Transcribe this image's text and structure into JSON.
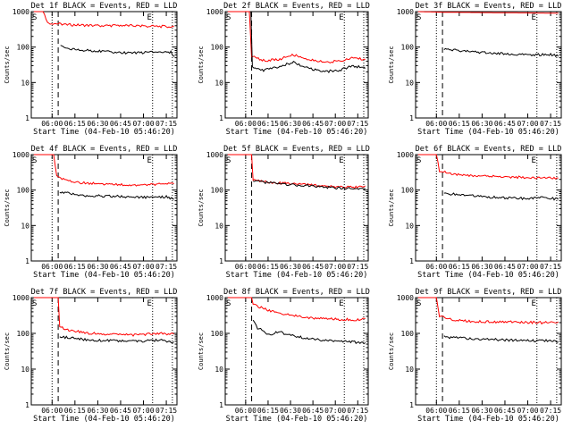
{
  "chart_data": [
    {
      "type": "line",
      "title": "Det 1f BLACK = Events, RED = LLD",
      "xlabel": "Start Time (04-Feb-10 05:46:20)",
      "ylabel": "Counts/sec",
      "yscale": "log",
      "ylim": [
        1,
        1000
      ],
      "xlim": [
        "05:46:20",
        "07:22:00"
      ],
      "x_ticks": [
        "06:00",
        "06:15",
        "06:30",
        "06:45",
        "07:00",
        "07:15"
      ],
      "y_ticks": [
        "1",
        "10",
        "100",
        "1000"
      ],
      "markers": [
        "S",
        "E"
      ],
      "series": [
        {
          "name": "",
          "color": "#ff0000",
          "points": [
            [
              "05:48:00",
              1000
            ],
            [
              "05:54:00",
              1000
            ],
            [
              "05:57:00",
              480
            ],
            [
              "06:10:00",
              430
            ],
            [
              "06:30:00",
              400
            ],
            [
              "06:45:00",
              410
            ],
            [
              "07:00:00",
              390
            ],
            [
              "07:15:00",
              380
            ],
            [
              "07:20:00",
              370
            ]
          ]
        },
        {
          "name": "",
          "color": "#000000",
          "points": [
            [
              "06:05:30",
              110
            ],
            [
              "06:10:00",
              95
            ],
            [
              "06:18:00",
              82
            ],
            [
              "06:26:00",
              80
            ],
            [
              "06:38:00",
              72
            ],
            [
              "06:50:00",
              68
            ],
            [
              "07:02:00",
              70
            ],
            [
              "07:12:00",
              75
            ],
            [
              "07:18:00",
              72
            ],
            [
              "07:20:30",
              55
            ]
          ]
        }
      ]
    },
    {
      "type": "line",
      "title": "Det 2f BLACK = Events, RED = LLD",
      "xlabel": "Start Time (04-Feb-10 05:46:20)",
      "ylabel": "Counts/sec",
      "yscale": "log",
      "ylim": [
        1,
        1000
      ],
      "xlim": [
        "05:46:20",
        "07:22:00"
      ],
      "x_ticks": [
        "06:00",
        "06:15",
        "06:30",
        "06:45",
        "07:00",
        "07:15"
      ],
      "y_ticks": [
        "1",
        "10",
        "100",
        "1000"
      ],
      "markers": [
        "S",
        "E"
      ],
      "series": [
        {
          "name": "",
          "color": "#ff0000",
          "points": [
            [
              "05:48:00",
              1000
            ],
            [
              "06:02:30",
              1000
            ],
            [
              "06:04:00",
              55
            ],
            [
              "06:12:00",
              42
            ],
            [
              "06:22:00",
              45
            ],
            [
              "06:32:00",
              60
            ],
            [
              "06:42:00",
              45
            ],
            [
              "06:52:00",
              38
            ],
            [
              "07:02:00",
              40
            ],
            [
              "07:12:00",
              50
            ],
            [
              "07:20:00",
              45
            ]
          ]
        },
        {
          "name": "",
          "color": "#000000",
          "points": [
            [
              "06:03:30",
              1000
            ],
            [
              "06:04:30",
              28
            ],
            [
              "06:12:00",
              22
            ],
            [
              "06:22:00",
              28
            ],
            [
              "06:32:00",
              38
            ],
            [
              "06:42:00",
              25
            ],
            [
              "06:52:00",
              20
            ],
            [
              "07:02:00",
              22
            ],
            [
              "07:12:00",
              30
            ],
            [
              "07:20:00",
              25
            ]
          ]
        }
      ]
    },
    {
      "type": "line",
      "title": "Det 3f BLACK = Events, RED = LLD",
      "xlabel": "Start Time (04-Feb-10 05:46:20)",
      "ylabel": "Counts/sec",
      "yscale": "log",
      "ylim": [
        1,
        1000
      ],
      "xlim": [
        "05:46:20",
        "07:22:00"
      ],
      "x_ticks": [
        "06:00",
        "06:15",
        "06:30",
        "06:45",
        "07:00",
        "07:15"
      ],
      "y_ticks": [
        "1",
        "10",
        "100",
        "1000"
      ],
      "markers": [
        "S",
        "E"
      ],
      "series": [
        {
          "name": "",
          "color": "#ff0000",
          "points": [
            [
              "05:48:00",
              1000
            ],
            [
              "06:05:00",
              960
            ],
            [
              "06:30:00",
              940
            ],
            [
              "07:00:00",
              920
            ],
            [
              "07:20:00",
              900
            ]
          ]
        },
        {
          "name": "",
          "color": "#000000",
          "points": [
            [
              "06:05:00",
              85
            ],
            [
              "06:15:00",
              80
            ],
            [
              "06:30:00",
              70
            ],
            [
              "06:45:00",
              65
            ],
            [
              "07:00:00",
              60
            ],
            [
              "07:15:00",
              62
            ],
            [
              "07:20:00",
              55
            ]
          ]
        }
      ]
    },
    {
      "type": "line",
      "title": "Det 4f BLACK = Events, RED = LLD",
      "xlabel": "Start Time (04-Feb-10 05:46:20)",
      "ylabel": "Counts/sec",
      "yscale": "log",
      "ylim": [
        1,
        1000
      ],
      "xlim": [
        "05:46:20",
        "07:22:00"
      ],
      "x_ticks": [
        "06:00",
        "06:15",
        "06:30",
        "06:45",
        "07:00",
        "07:15"
      ],
      "y_ticks": [
        "1",
        "10",
        "100",
        "1000"
      ],
      "markers": [
        "S",
        "E"
      ],
      "series": [
        {
          "name": "",
          "color": "#ff0000",
          "points": [
            [
              "05:48:00",
              1000
            ],
            [
              "06:01:00",
              1000
            ],
            [
              "06:03:00",
              240
            ],
            [
              "06:10:00",
              180
            ],
            [
              "06:20:00",
              160
            ],
            [
              "06:35:00",
              150
            ],
            [
              "06:50:00",
              140
            ],
            [
              "07:05:00",
              145
            ],
            [
              "07:20:00",
              150
            ]
          ]
        },
        {
          "name": "",
          "color": "#000000",
          "points": [
            [
              "06:05:00",
              90
            ],
            [
              "06:12:00",
              80
            ],
            [
              "06:22:00",
              70
            ],
            [
              "06:35:00",
              68
            ],
            [
              "06:50:00",
              65
            ],
            [
              "07:05:00",
              63
            ],
            [
              "07:15:00",
              65
            ],
            [
              "07:20:00",
              55
            ]
          ]
        }
      ]
    },
    {
      "type": "line",
      "title": "Det 5f BLACK = Events, RED = LLD",
      "xlabel": "Start Time (04-Feb-10 05:46:20)",
      "ylabel": "Counts/sec",
      "yscale": "log",
      "ylim": [
        1,
        1000
      ],
      "xlim": [
        "05:46:20",
        "07:22:00"
      ],
      "x_ticks": [
        "06:00",
        "06:15",
        "06:30",
        "06:45",
        "07:00",
        "07:15"
      ],
      "y_ticks": [
        "1",
        "10",
        "100",
        "1000"
      ],
      "markers": [
        "S",
        "E"
      ],
      "series": [
        {
          "name": "",
          "color": "#ff0000",
          "points": [
            [
              "05:48:00",
              1000
            ],
            [
              "06:04:00",
              1000
            ],
            [
              "06:05:00",
              200
            ],
            [
              "06:15:00",
              170
            ],
            [
              "06:30:00",
              150
            ],
            [
              "06:45:00",
              140
            ],
            [
              "07:00:00",
              125
            ],
            [
              "07:12:00",
              120
            ],
            [
              "07:20:00",
              130
            ]
          ]
        },
        {
          "name": "",
          "color": "#000000",
          "points": [
            [
              "06:05:00",
              185
            ],
            [
              "06:15:00",
              160
            ],
            [
              "06:30:00",
              140
            ],
            [
              "06:45:00",
              132
            ],
            [
              "07:00:00",
              115
            ],
            [
              "07:12:00",
              110
            ],
            [
              "07:20:00",
              112
            ]
          ]
        }
      ]
    },
    {
      "type": "line",
      "title": "Det 6f BLACK = Events, RED = LLD",
      "xlabel": "Start Time (04-Feb-10 05:46:20)",
      "ylabel": "Counts/sec",
      "yscale": "log",
      "ylim": [
        1,
        1000
      ],
      "xlim": [
        "05:46:20",
        "07:22:00"
      ],
      "x_ticks": [
        "06:00",
        "06:15",
        "06:30",
        "06:45",
        "07:00",
        "07:15"
      ],
      "y_ticks": [
        "1",
        "10",
        "100",
        "1000"
      ],
      "markers": [
        "S",
        "E"
      ],
      "series": [
        {
          "name": "",
          "color": "#ff0000",
          "points": [
            [
              "05:48:00",
              1000
            ],
            [
              "06:00:00",
              1000
            ],
            [
              "06:02:00",
              350
            ],
            [
              "06:10:00",
              280
            ],
            [
              "06:25:00",
              250
            ],
            [
              "06:40:00",
              240
            ],
            [
              "06:55:00",
              230
            ],
            [
              "07:10:00",
              215
            ],
            [
              "07:20:00",
              220
            ]
          ]
        },
        {
          "name": "",
          "color": "#000000",
          "points": [
            [
              "06:05:00",
              80
            ],
            [
              "06:15:00",
              75
            ],
            [
              "06:30:00",
              65
            ],
            [
              "06:45:00",
              60
            ],
            [
              "07:00:00",
              58
            ],
            [
              "07:12:00",
              62
            ],
            [
              "07:20:00",
              55
            ]
          ]
        }
      ]
    },
    {
      "type": "line",
      "title": "Det 7f BLACK = Events, RED = LLD",
      "xlabel": "Start Time (04-Feb-10 05:46:20)",
      "ylabel": "Counts/sec",
      "yscale": "log",
      "ylim": [
        1,
        1000
      ],
      "xlim": [
        "05:46:20",
        "07:22:00"
      ],
      "x_ticks": [
        "06:00",
        "06:15",
        "06:30",
        "06:45",
        "07:00",
        "07:15"
      ],
      "y_ticks": [
        "1",
        "10",
        "100",
        "1000"
      ],
      "markers": [
        "S",
        "E"
      ],
      "series": [
        {
          "name": "",
          "color": "#ff0000",
          "points": [
            [
              "05:48:00",
              1000
            ],
            [
              "06:04:00",
              1000
            ],
            [
              "06:05:00",
              150
            ],
            [
              "06:12:00",
              120
            ],
            [
              "06:25:00",
              100
            ],
            [
              "06:40:00",
              95
            ],
            [
              "06:55:00",
              90
            ],
            [
              "07:10:00",
              100
            ],
            [
              "07:20:00",
              95
            ]
          ]
        },
        {
          "name": "",
          "color": "#000000",
          "points": [
            [
              "06:05:00",
              80
            ],
            [
              "06:12:00",
              75
            ],
            [
              "06:25:00",
              65
            ],
            [
              "06:40:00",
              62
            ],
            [
              "06:55:00",
              60
            ],
            [
              "07:10:00",
              65
            ],
            [
              "07:20:00",
              58
            ]
          ]
        }
      ]
    },
    {
      "type": "line",
      "title": "Det 8f BLACK = Events, RED = LLD",
      "xlabel": "Start Time (04-Feb-10 05:46:20)",
      "ylabel": "Counts/sec",
      "yscale": "log",
      "ylim": [
        1,
        1000
      ],
      "xlim": [
        "05:46:20",
        "07:22:00"
      ],
      "x_ticks": [
        "06:00",
        "06:15",
        "06:30",
        "06:45",
        "07:00",
        "07:15"
      ],
      "y_ticks": [
        "1",
        "10",
        "100",
        "1000"
      ],
      "markers": [
        "S",
        "E"
      ],
      "series": [
        {
          "name": "",
          "color": "#ff0000",
          "points": [
            [
              "05:48:00",
              1000
            ],
            [
              "06:04:00",
              1000
            ],
            [
              "06:05:00",
              650
            ],
            [
              "06:15:00",
              450
            ],
            [
              "06:30:00",
              320
            ],
            [
              "06:45:00",
              270
            ],
            [
              "07:00:00",
              250
            ],
            [
              "07:15:00",
              240
            ],
            [
              "07:20:00",
              260
            ]
          ]
        },
        {
          "name": "",
          "color": "#000000",
          "points": [
            [
              "06:05:00",
              220
            ],
            [
              "06:08:00",
              140
            ],
            [
              "06:12:00",
              120
            ],
            [
              "06:15:00",
              90
            ],
            [
              "06:22:00",
              110
            ],
            [
              "06:35:00",
              80
            ],
            [
              "06:50:00",
              65
            ],
            [
              "07:05:00",
              60
            ],
            [
              "07:20:00",
              55
            ]
          ]
        }
      ]
    },
    {
      "type": "line",
      "title": "Det 9f BLACK = Events, RED = LLD",
      "xlabel": "Start Time (04-Feb-10 05:46:20)",
      "ylabel": "Counts/sec",
      "yscale": "log",
      "ylim": [
        1,
        1000
      ],
      "xlim": [
        "05:46:20",
        "07:22:00"
      ],
      "x_ticks": [
        "06:00",
        "06:15",
        "06:30",
        "06:45",
        "07:00",
        "07:15"
      ],
      "y_ticks": [
        "1",
        "10",
        "100",
        "1000"
      ],
      "markers": [
        "S",
        "E"
      ],
      "series": [
        {
          "name": "",
          "color": "#ff0000",
          "points": [
            [
              "05:48:00",
              1000
            ],
            [
              "06:00:00",
              1000
            ],
            [
              "06:02:00",
              300
            ],
            [
              "06:10:00",
              240
            ],
            [
              "06:25:00",
              215
            ],
            [
              "06:40:00",
              210
            ],
            [
              "06:55:00",
              205
            ],
            [
              "07:10:00",
              200
            ],
            [
              "07:20:00",
              210
            ]
          ]
        },
        {
          "name": "",
          "color": "#000000",
          "points": [
            [
              "06:05:00",
              80
            ],
            [
              "06:15:00",
              75
            ],
            [
              "06:30:00",
              70
            ],
            [
              "06:45:00",
              65
            ],
            [
              "07:00:00",
              62
            ],
            [
              "07:12:00",
              63
            ],
            [
              "07:20:00",
              58
            ]
          ]
        }
      ]
    }
  ]
}
